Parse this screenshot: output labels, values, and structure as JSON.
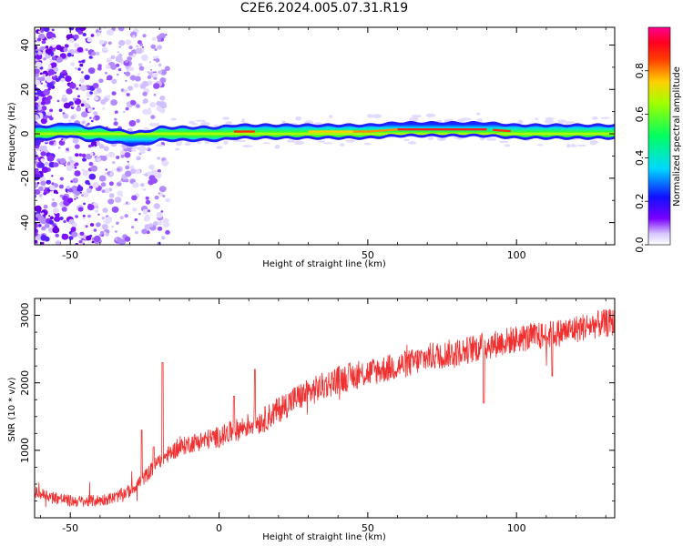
{
  "title": "C2E6.2024.005.07.31.R19",
  "colors": {
    "axis": "#000000",
    "snr_line": "#f03030",
    "background": "#ffffff"
  },
  "chart_data": [
    {
      "type": "heatmap",
      "xlabel": "Height of straight line (km)",
      "ylabel": "Frequency (Hz)",
      "xlim": [
        -62,
        133
      ],
      "ylim": [
        -50,
        48
      ],
      "x_ticks": [
        -50,
        0,
        50,
        100
      ],
      "y_ticks": [
        -40,
        -20,
        0,
        20,
        40
      ],
      "colorbar": {
        "label": "Normalized spectral amplitude",
        "range": [
          0,
          1
        ],
        "ticks": [
          "0.0",
          "0.2",
          "0.4",
          "0.6",
          "0.8"
        ],
        "colormap": "rainbow (white-violet-blue-cyan-green-yellow-red-magenta)"
      },
      "ridge": {
        "description": "dominant spectral ridge near 0 Hz",
        "x": [
          -62,
          -55,
          -50,
          -45,
          -40,
          -35,
          -30,
          -25,
          -20,
          -15,
          -10,
          -5,
          0,
          5,
          10,
          20,
          30,
          40,
          50,
          60,
          70,
          80,
          90,
          100,
          110,
          120,
          133
        ],
        "y": [
          0,
          1,
          2,
          0,
          0,
          -1,
          -2,
          -2,
          0,
          0,
          0,
          0,
          0,
          1,
          1,
          1,
          1,
          1,
          1,
          2,
          2,
          2,
          2,
          1,
          1,
          1,
          1
        ]
      }
    },
    {
      "type": "line",
      "xlabel": "Height of straight line (km)",
      "ylabel": "SNR (10 * v/v)",
      "xlim": [
        -62,
        133
      ],
      "ylim": [
        0,
        3250
      ],
      "x_ticks": [
        -50,
        0,
        50,
        100
      ],
      "y_ticks": [
        1000,
        2000,
        3000
      ],
      "trend": {
        "x": [
          -62,
          -55,
          -50,
          -45,
          -40,
          -35,
          -30,
          -25,
          -20,
          -15,
          -10,
          -5,
          0,
          5,
          10,
          15,
          20,
          25,
          30,
          35,
          40,
          45,
          50,
          55,
          60,
          65,
          70,
          75,
          80,
          85,
          90,
          95,
          100,
          105,
          110,
          115,
          120,
          125,
          133
        ],
        "y": [
          380,
          300,
          250,
          240,
          260,
          300,
          400,
          600,
          850,
          1000,
          1100,
          1150,
          1200,
          1280,
          1380,
          1450,
          1600,
          1750,
          1850,
          1950,
          2050,
          2100,
          2150,
          2200,
          2250,
          2300,
          2380,
          2420,
          2450,
          2500,
          2550,
          2600,
          2650,
          2680,
          2700,
          2750,
          2800,
          2850,
          2900
        ]
      },
      "spikes": [
        {
          "x": -19,
          "y": 2300
        },
        {
          "x": -26,
          "y": 1300
        },
        {
          "x": -22,
          "y": 1050
        },
        {
          "x": 12,
          "y": 2200
        },
        {
          "x": 5,
          "y": 1800
        },
        {
          "x": 89,
          "y": 1700
        },
        {
          "x": 112,
          "y": 2100
        }
      ]
    }
  ]
}
